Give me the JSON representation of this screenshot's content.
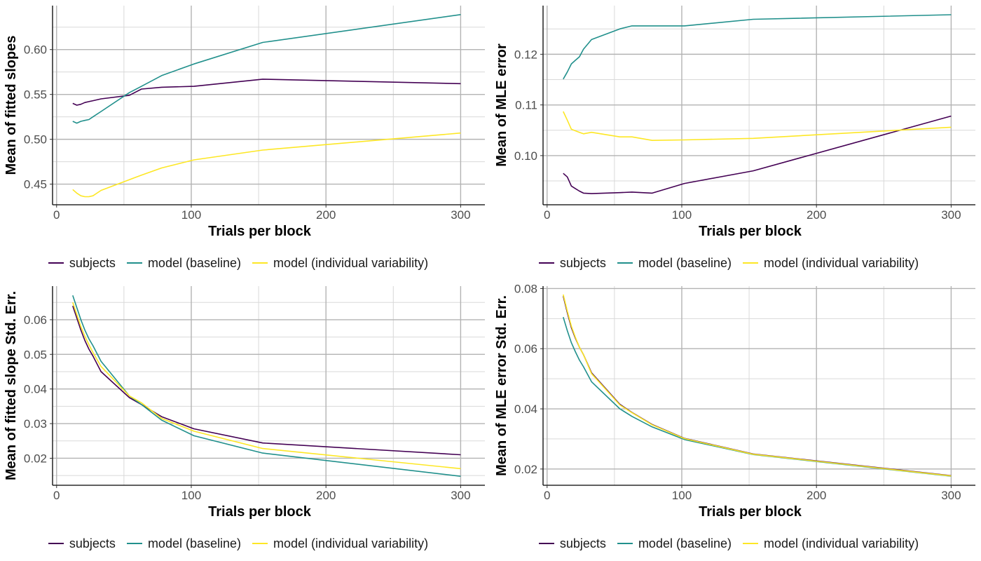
{
  "colors": {
    "subjects": "#440154",
    "model_baseline": "#21908C",
    "model_individual": "#FDE725",
    "grid_major": "#b3b3b3",
    "grid_minor": "#d9d9d9",
    "axis": "#000000"
  },
  "chart_data": [
    {
      "type": "line",
      "xlabel": "Trials per block",
      "ylabel": "Mean of fitted slopes",
      "xlim": [
        -3,
        318
      ],
      "ylim": [
        0.427,
        0.649
      ],
      "xticks": [
        0,
        100,
        200,
        300
      ],
      "xtick_labels": [
        "0",
        "100",
        "200",
        "300"
      ],
      "yticks": [
        0.45,
        0.5,
        0.55,
        0.6
      ],
      "ytick_labels": [
        "0.45",
        "0.50",
        "0.55",
        "0.60"
      ],
      "grid": true,
      "legend_position": "bottom",
      "x": [
        12,
        15,
        18,
        21,
        24,
        27,
        33,
        54,
        63,
        78,
        102,
        153,
        300
      ],
      "series": [
        {
          "name": "subjects",
          "color_key": "subjects",
          "values": [
            0.54,
            0.538,
            0.539,
            0.541,
            0.542,
            0.543,
            0.545,
            0.549,
            0.556,
            0.558,
            0.559,
            0.567,
            0.562
          ]
        },
        {
          "name": "model (baseline)",
          "color_key": "model_baseline",
          "values": [
            0.52,
            0.518,
            0.52,
            0.521,
            0.522,
            0.525,
            0.531,
            0.552,
            0.559,
            0.571,
            0.584,
            0.608,
            0.639
          ]
        },
        {
          "name": "model (individual variability)",
          "color_key": "model_individual",
          "values": [
            0.444,
            0.44,
            0.437,
            0.436,
            0.436,
            0.437,
            0.443,
            0.455,
            0.46,
            0.468,
            0.477,
            0.488,
            0.507
          ]
        }
      ]
    },
    {
      "type": "line",
      "xlabel": "Trials per block",
      "ylabel": "Mean of MLE error",
      "xlim": [
        -3,
        318
      ],
      "ylim": [
        0.0903,
        0.1296
      ],
      "xticks": [
        0,
        100,
        200,
        300
      ],
      "xtick_labels": [
        "0",
        "100",
        "200",
        "300"
      ],
      "yticks": [
        0.1,
        0.11,
        0.12
      ],
      "ytick_labels": [
        "0.10",
        "0.11",
        "0.12"
      ],
      "grid": true,
      "legend_position": "bottom",
      "x": [
        12,
        15,
        18,
        21,
        24,
        27,
        33,
        54,
        63,
        78,
        102,
        153,
        300
      ],
      "series": [
        {
          "name": "subjects",
          "color_key": "subjects",
          "values": [
            0.0965,
            0.0958,
            0.094,
            0.0935,
            0.093,
            0.0926,
            0.0925,
            0.0927,
            0.0928,
            0.0926,
            0.0945,
            0.097,
            0.1078
          ]
        },
        {
          "name": "model (baseline)",
          "color_key": "model_baseline",
          "values": [
            0.1151,
            0.1165,
            0.1181,
            0.1188,
            0.1195,
            0.121,
            0.1229,
            0.125,
            0.1256,
            0.1256,
            0.1256,
            0.1269,
            0.1278
          ]
        },
        {
          "name": "model (individual variability)",
          "color_key": "model_individual",
          "values": [
            0.1087,
            0.107,
            0.1052,
            0.1049,
            0.1046,
            0.1043,
            0.1046,
            0.1037,
            0.1037,
            0.103,
            0.1031,
            0.1034,
            0.1056
          ]
        }
      ]
    },
    {
      "type": "line",
      "xlabel": "Trials per block",
      "ylabel": "Mean of fitted slope Std. Err.",
      "xlim": [
        -3,
        318
      ],
      "ylim": [
        0.0122,
        0.0697
      ],
      "xticks": [
        0,
        100,
        200,
        300
      ],
      "xtick_labels": [
        "0",
        "100",
        "200",
        "300"
      ],
      "yticks": [
        0.02,
        0.03,
        0.04,
        0.05,
        0.06
      ],
      "ytick_labels": [
        "0.02",
        "0.03",
        "0.04",
        "0.05",
        "0.06"
      ],
      "grid": true,
      "legend_position": "bottom",
      "x": [
        12,
        15,
        18,
        21,
        24,
        27,
        33,
        54,
        63,
        78,
        102,
        153,
        300
      ],
      "series": [
        {
          "name": "subjects",
          "color_key": "subjects",
          "values": [
            0.064,
            0.0605,
            0.057,
            0.054,
            0.0515,
            0.0495,
            0.045,
            0.0375,
            0.0355,
            0.032,
            0.0285,
            0.0244,
            0.021
          ]
        },
        {
          "name": "model (baseline)",
          "color_key": "model_baseline",
          "values": [
            0.067,
            0.0635,
            0.06,
            0.057,
            0.0545,
            0.0525,
            0.048,
            0.038,
            0.0355,
            0.031,
            0.0265,
            0.0215,
            0.0148
          ]
        },
        {
          "name": "model (individual variability)",
          "color_key": "model_individual",
          "values": [
            0.065,
            0.0615,
            0.058,
            0.0552,
            0.0528,
            0.0505,
            0.0465,
            0.038,
            0.036,
            0.0315,
            0.0278,
            0.0228,
            0.017
          ]
        }
      ]
    },
    {
      "type": "line",
      "xlabel": "Trials per block",
      "ylabel": "Mean of MLE error Std. Err.",
      "xlim": [
        -3,
        318
      ],
      "ylim": [
        0.0146,
        0.0808
      ],
      "xticks": [
        0,
        100,
        200,
        300
      ],
      "xtick_labels": [
        "0",
        "100",
        "200",
        "300"
      ],
      "yticks": [
        0.02,
        0.04,
        0.06,
        0.08
      ],
      "ytick_labels": [
        "0.02",
        "0.04",
        "0.06",
        "0.08"
      ],
      "grid": true,
      "legend_position": "bottom",
      "x": [
        12,
        15,
        18,
        21,
        24,
        27,
        33,
        54,
        63,
        78,
        102,
        153,
        300
      ],
      "series": [
        {
          "name": "subjects",
          "color_key": "subjects",
          "values": [
            0.0775,
            0.072,
            0.067,
            0.0635,
            0.0605,
            0.058,
            0.052,
            0.0415,
            0.0388,
            0.0348,
            0.0302,
            0.025,
            0.0178
          ]
        },
        {
          "name": "model (baseline)",
          "color_key": "model_baseline",
          "values": [
            0.0705,
            0.066,
            0.062,
            0.059,
            0.0562,
            0.054,
            0.049,
            0.04,
            0.0375,
            0.034,
            0.0298,
            0.0248,
            0.0176
          ]
        },
        {
          "name": "model (individual variability)",
          "color_key": "model_individual",
          "values": [
            0.078,
            0.0725,
            0.0675,
            0.0638,
            0.0605,
            0.058,
            0.0517,
            0.0413,
            0.0387,
            0.0347,
            0.0301,
            0.0249,
            0.0177
          ]
        }
      ]
    }
  ]
}
